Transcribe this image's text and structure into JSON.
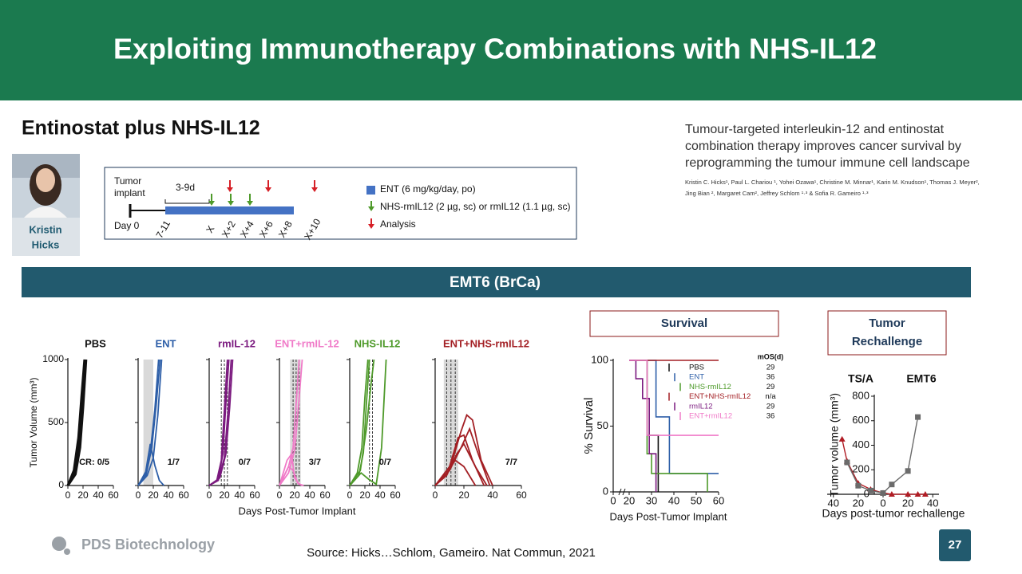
{
  "header": {
    "title": "Exploiting Immunotherapy Combinations with NHS-IL12"
  },
  "section": {
    "title": "Entinostat plus NHS-IL12"
  },
  "presenter": {
    "first": "Kristin",
    "last": "Hicks"
  },
  "schema": {
    "tumor": "Tumor",
    "implant": "implant",
    "interval": "3-9d",
    "day0": "Day 0",
    "days": [
      "7-11",
      "X",
      "X+2",
      "X+4",
      "X+6",
      "X+8",
      "X+10"
    ],
    "legend": [
      "ENT (6 mg/kg/day, po)",
      "NHS-rmIL12 (2 µg, sc) or rmIL12 (1.1 µg, sc)",
      "Analysis"
    ]
  },
  "paper": {
    "title_lines": [
      "Tumour-targeted interleukin-12 and entinostat",
      "combination therapy improves cancer survival by",
      "reprogramming the tumour immune cell landscape"
    ],
    "authors_lines": [
      "Kristin C. Hicks¹, Paul L. Chariou ¹, Yohei Ozawa¹, Christine M. Minnar¹, Karin M. Knudson¹, Thomas J. Meyer²,",
      "Jing Bian ², Margaret Cam², Jeffrey Schlom ¹·³ & Sofia R. Gameiro ¹·³"
    ]
  },
  "banner": "EMT6 (BrCa)",
  "tumor_growth": {
    "type": "line",
    "y_label": "Tumor Volume (mm³)",
    "x_label": "Days Post-Tumor Implant",
    "ylim": [
      0,
      1000
    ],
    "yticks": [
      0,
      500,
      1000
    ],
    "xlim": [
      0,
      60
    ],
    "xticks": [
      0,
      20,
      40,
      60
    ],
    "panels": [
      {
        "title": "PBS",
        "color": "#111111",
        "cr_label": "CR: 0/5",
        "curves": [
          {
            "x": [
              0,
              8,
              14,
              18,
              22
            ],
            "values": [
              0,
              120,
              380,
              700,
              1000
            ]
          },
          {
            "x": [
              0,
              9,
              15,
              19,
              23
            ],
            "values": [
              0,
              100,
              330,
              650,
              1000
            ]
          },
          {
            "x": [
              0,
              10,
              16,
              20,
              24
            ],
            "values": [
              0,
              90,
              300,
              620,
              1000
            ]
          }
        ]
      },
      {
        "title": "ENT",
        "color": "#2e5fa8",
        "cr_label": "1/7",
        "shade": [
          7,
          20
        ],
        "curves": [
          {
            "x": [
              0,
              10,
              16,
              22,
              27
            ],
            "values": [
              0,
              90,
              260,
              600,
              1000
            ]
          },
          {
            "x": [
              0,
              10,
              18,
              24,
              29
            ],
            "values": [
              0,
              70,
              300,
              650,
              1000
            ]
          },
          {
            "x": [
              0,
              12,
              20,
              26,
              31
            ],
            "values": [
              0,
              80,
              220,
              560,
              1000
            ]
          },
          {
            "x": [
              0,
              10,
              16,
              22,
              28,
              34
            ],
            "values": [
              0,
              110,
              330,
              160,
              40,
              0
            ]
          }
        ]
      },
      {
        "title": "rmIL-12",
        "color": "#7b1a7f",
        "cr_label": "0/7",
        "dashes": [
          16,
          20,
          24
        ],
        "curves": [
          {
            "x": [
              0,
              10,
              16,
              20,
              24
            ],
            "values": [
              0,
              40,
              200,
              600,
              1000
            ]
          },
          {
            "x": [
              0,
              12,
              18,
              22,
              26
            ],
            "values": [
              0,
              50,
              250,
              650,
              1000
            ]
          },
          {
            "x": [
              0,
              12,
              20,
              25,
              29
            ],
            "values": [
              0,
              40,
              220,
              600,
              1000
            ]
          },
          {
            "x": [
              0,
              14,
              22,
              27,
              31
            ],
            "values": [
              0,
              60,
              250,
              620,
              1000
            ]
          }
        ]
      },
      {
        "title": "ENT+rmIL-12",
        "color": "#f07ac8",
        "cr_label": "3/7",
        "shade": [
          14,
          28
        ],
        "dashes": [
          18,
          22,
          26
        ],
        "curves": [
          {
            "x": [
              0,
              12,
              18,
              22,
              26
            ],
            "values": [
              0,
              150,
              300,
              650,
              1000
            ]
          },
          {
            "x": [
              0,
              12,
              20,
              25,
              30
            ],
            "values": [
              0,
              100,
              280,
              620,
              1000
            ]
          },
          {
            "x": [
              0,
              10,
              16,
              20,
              26,
              32
            ],
            "values": [
              0,
              200,
              250,
              60,
              10,
              0
            ]
          },
          {
            "x": [
              0,
              12,
              18,
              24,
              30
            ],
            "values": [
              0,
              150,
              120,
              20,
              0
            ]
          }
        ]
      },
      {
        "title": "NHS-IL12",
        "color": "#4e9a2a",
        "cr_label": "0/7",
        "dashes": [
          26,
          30
        ],
        "curves": [
          {
            "x": [
              0,
              10,
              16,
              20,
              24
            ],
            "values": [
              0,
              100,
              300,
              700,
              1000
            ]
          },
          {
            "x": [
              0,
              12,
              18,
              22,
              26
            ],
            "values": [
              0,
              80,
              260,
              650,
              1000
            ]
          },
          {
            "x": [
              0,
              14,
              22,
              28,
              32
            ],
            "values": [
              0,
              120,
              450,
              800,
              1000
            ]
          },
          {
            "x": [
              0,
              15,
              25,
              35,
              42,
              48
            ],
            "values": [
              0,
              100,
              50,
              10,
              300,
              1000
            ]
          }
        ]
      },
      {
        "title": "ENT+NHS-rmIL12",
        "color": "#a31f24",
        "cr_label": "7/7",
        "shade": [
          6,
          16
        ],
        "dashes": [
          8,
          11,
          14
        ],
        "curves": [
          {
            "x": [
              0,
              10,
              18,
              22,
              26,
              32,
              40
            ],
            "values": [
              0,
              120,
              430,
              560,
              520,
              200,
              0
            ]
          },
          {
            "x": [
              0,
              10,
              16,
              20,
              26,
              34
            ],
            "values": [
              0,
              150,
              380,
              400,
              200,
              0
            ]
          },
          {
            "x": [
              0,
              8,
              15,
              20,
              28,
              36
            ],
            "values": [
              0,
              80,
              250,
              330,
              150,
              0
            ]
          },
          {
            "x": [
              0,
              10,
              18,
              24,
              30,
              38
            ],
            "values": [
              0,
              120,
              300,
              450,
              250,
              0
            ]
          },
          {
            "x": [
              0,
              8,
              14,
              20,
              28
            ],
            "values": [
              0,
              100,
              200,
              150,
              0
            ]
          }
        ]
      }
    ]
  },
  "survival": {
    "type": "line",
    "box_title": "Survival",
    "y_label": "% Survival",
    "x_label": "Days Post-Tumor Implant",
    "ylim": [
      0,
      100
    ],
    "yticks": [
      0,
      50,
      100
    ],
    "xlim": [
      0,
      60
    ],
    "xticks": [
      0,
      20,
      30,
      40,
      50,
      60
    ],
    "mos_header": "mOS(d)",
    "series": [
      {
        "name": "PBS",
        "color": "#111111",
        "mos": 29,
        "x": [
          20,
          28,
          28,
          33,
          33
        ],
        "values": [
          100,
          100,
          43,
          43,
          0
        ]
      },
      {
        "name": "ENT",
        "color": "#2e5fa8",
        "mos": 36,
        "x": [
          20,
          32,
          32,
          38,
          38,
          60
        ],
        "values": [
          100,
          100,
          57,
          57,
          14,
          14
        ]
      },
      {
        "name": "NHS-rmIL12",
        "color": "#4e9a2a",
        "mos": 29,
        "x": [
          20,
          28,
          28,
          30,
          30,
          55,
          55
        ],
        "values": [
          100,
          100,
          29,
          29,
          14,
          14,
          0
        ]
      },
      {
        "name": "ENT+NHS-rmIL12",
        "color": "#a31f24",
        "mos": "n/a",
        "x": [
          20,
          60
        ],
        "values": [
          100,
          100
        ]
      },
      {
        "name": "rmIL12",
        "color": "#7b1a7f",
        "mos": 29,
        "x": [
          20,
          23,
          23,
          26,
          26,
          29,
          29,
          32,
          32
        ],
        "values": [
          100,
          100,
          86,
          86,
          71,
          71,
          29,
          29,
          0
        ]
      },
      {
        "name": "ENT+rmIL12",
        "color": "#f07ac8",
        "mos": 36,
        "x": [
          20,
          28,
          28,
          60
        ],
        "values": [
          100,
          100,
          43,
          43
        ]
      }
    ]
  },
  "rechallenge": {
    "type": "line",
    "box_title": "Tumor Rechallenge",
    "y_label": "Tumor volume (mm³)",
    "x_label": "Days post-tumor rechallenge",
    "ylim": [
      0,
      800
    ],
    "yticks": [
      0,
      200,
      400,
      600,
      800
    ],
    "xlim": [
      -45,
      45
    ],
    "xticks": [
      {
        "value": -40,
        "label": "40"
      },
      {
        "value": -20,
        "label": "20"
      },
      0,
      20,
      40
    ],
    "series": [
      {
        "name": "TS/A",
        "color": "#b01c24",
        "x": [
          -33,
          -29,
          -20,
          -10,
          0,
          7,
          20,
          28,
          34
        ],
        "values": [
          450,
          270,
          90,
          40,
          10,
          0,
          0,
          0,
          0
        ]
      },
      {
        "name": "EMT6",
        "color": "#6b6b6b",
        "x": [
          -29,
          -20,
          -10,
          0,
          7,
          20,
          28
        ],
        "values": [
          260,
          70,
          30,
          10,
          80,
          190,
          630
        ]
      }
    ]
  },
  "footer": {
    "logo": "PDS Biotechnology",
    "source": "Source: Hicks…Schlom, Gameiro. Nat Commun, 2021",
    "page": "27"
  }
}
